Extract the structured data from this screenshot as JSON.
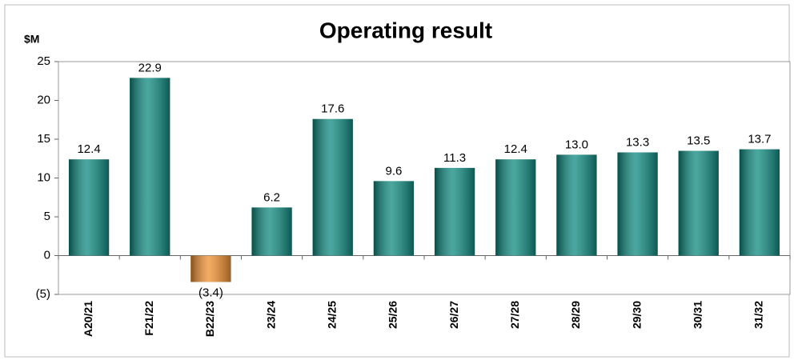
{
  "chart_data": {
    "type": "bar",
    "title": "Operating result",
    "y_axis_label": "$M",
    "categories": [
      "A20/21",
      "F21/22",
      "B22/23",
      "23/24",
      "24/25",
      "25/26",
      "26/27",
      "27/28",
      "28/29",
      "29/30",
      "30/31",
      "31/32"
    ],
    "values": [
      12.4,
      22.9,
      -3.4,
      6.2,
      17.6,
      9.6,
      11.3,
      12.4,
      13.0,
      13.3,
      13.5,
      13.7
    ],
    "value_labels": [
      "12.4",
      "22.9",
      "(3.4)",
      "6.2",
      "17.6",
      "9.6",
      "11.3",
      "12.4",
      "13.0",
      "13.3",
      "13.5",
      "13.7"
    ],
    "color": "#0e8a80",
    "negative_color": "#f09030",
    "negative_label_color": "#e00000",
    "ylim": [
      -5,
      25
    ],
    "yticks": [
      {
        "value": -5,
        "label": "(5)"
      },
      0,
      5,
      10,
      15,
      20,
      25
    ]
  }
}
